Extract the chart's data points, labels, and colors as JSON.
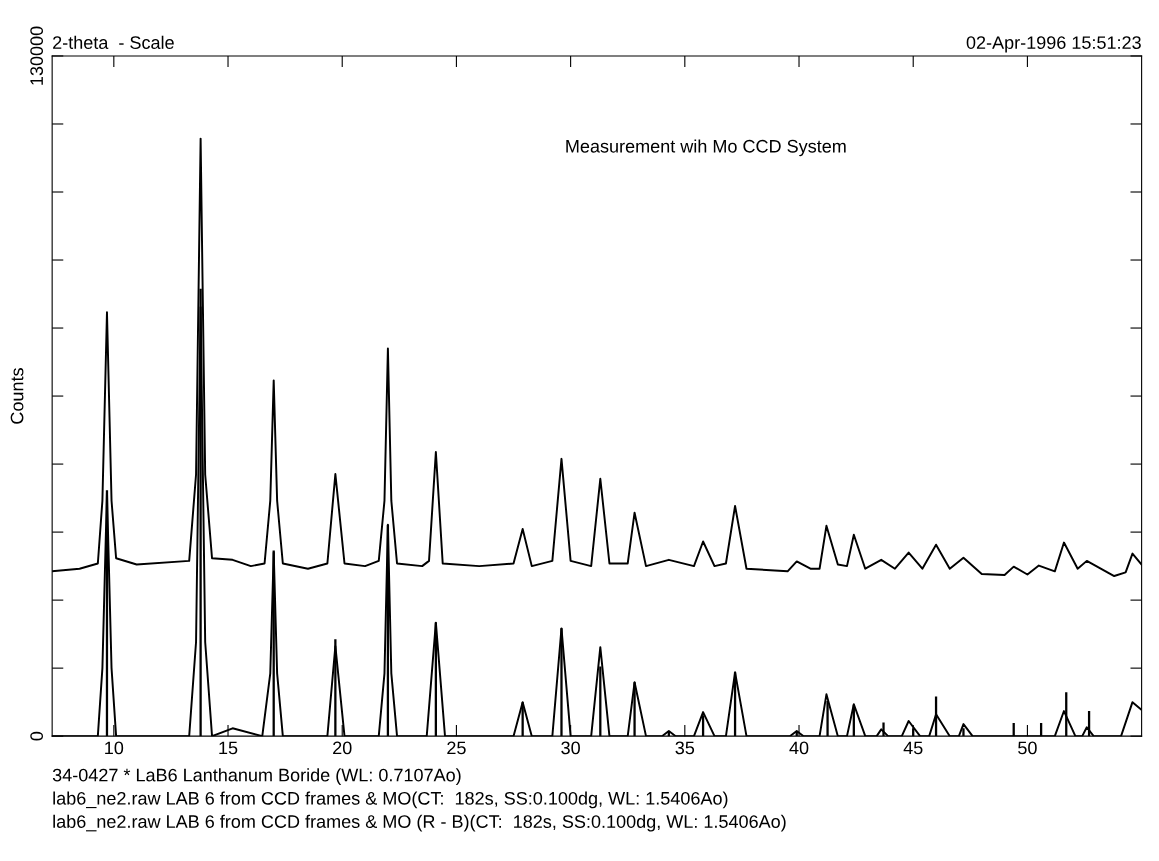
{
  "chart_data": {
    "type": "line",
    "xlabel": "2-theta  - Scale",
    "ylabel": "Counts",
    "subtitle": "02-Apr-1996 15:51:23",
    "annotations": [
      "Measurement wih Mo CCD System",
      "34-0427 * LaB6 Lanthanum Boride (WL: 0.7107Ao)",
      "lab6_ne2.raw LAB 6 from CCD frames & MO(CT:  182s, SS:0.100dg, WL: 1.5406Ao)",
      "lab6_ne2.raw LAB 6 from CCD frames & MO (R - B)(CT:  182s, SS:0.100dg, WL: 1.5406Ao)"
    ],
    "xlim": [
      7.3,
      55.0
    ],
    "xticks": [
      10,
      15,
      20,
      25,
      30,
      35,
      40,
      45,
      50
    ],
    "ylim": [
      0,
      130000
    ],
    "yticks": [
      0,
      {
        "value": 13000,
        "label": null
      },
      {
        "value": 26000,
        "label": null
      },
      {
        "value": 39000,
        "label": null
      },
      {
        "value": 52000,
        "label": null
      },
      {
        "value": 65000,
        "label": null
      },
      {
        "value": 78000,
        "label": null
      },
      {
        "value": 91000,
        "label": null
      },
      {
        "value": 104000,
        "label": null
      },
      {
        "value": 117000,
        "label": null
      },
      130000
    ],
    "tick_labels": "x,y",
    "grid": false,
    "legend": false,
    "series": [
      {
        "type": "bar",
        "color": "#000000",
        "x": [
          9.7,
          13.8,
          17.0,
          19.7,
          22.0,
          24.1,
          27.9,
          29.6,
          31.3,
          32.8,
          34.3,
          35.8,
          37.2,
          39.9,
          41.25,
          42.4,
          43.7,
          45.0,
          46.0,
          47.2,
          49.4,
          50.6,
          51.7,
          52.7
        ],
        "values": [
          47000,
          85500,
          35500,
          18500,
          40400,
          21700,
          6500,
          20600,
          13300,
          10300,
          900,
          4000,
          12200,
          700,
          6700,
          6000,
          2600,
          1500,
          7600,
          1500,
          2500,
          2500,
          8400,
          4800
        ]
      },
      {
        "color": "#000000",
        "x": [
          7.3,
          8.5,
          9.3,
          9.5,
          9.7,
          9.9,
          10.1,
          11,
          13.3,
          13.6,
          13.8,
          14.0,
          14.3,
          15.2,
          16.0,
          16.6,
          16.85,
          17.0,
          17.15,
          17.4,
          18.5,
          19.35,
          19.7,
          20.1,
          21,
          21.6,
          21.85,
          22.0,
          22.15,
          22.4,
          23.5,
          23.8,
          24.1,
          24.4,
          26,
          27.5,
          27.9,
          28.3,
          29.2,
          29.6,
          30.0,
          30.9,
          31.3,
          31.7,
          32.5,
          32.8,
          33.3,
          34.3,
          35.4,
          35.8,
          36.3,
          36.8,
          37.2,
          37.7,
          39.5,
          39.9,
          40.5,
          40.9,
          41.2,
          41.7,
          42.1,
          42.4,
          42.9,
          43.6,
          44.2,
          44.8,
          45.4,
          46.0,
          46.6,
          47.2,
          48.0,
          49.0,
          49.4,
          50.0,
          50.5,
          51.2,
          51.6,
          52.2,
          52.6,
          53.8,
          54.3,
          54.6,
          55.0
        ],
        "values": [
          31500,
          32000,
          33000,
          45000,
          81000,
          45000,
          34000,
          32800,
          33500,
          50000,
          114200,
          50000,
          34000,
          33700,
          32500,
          33000,
          45000,
          68000,
          45000,
          33000,
          32000,
          33000,
          50100,
          33000,
          32500,
          33500,
          45000,
          74100,
          45000,
          33000,
          32500,
          33500,
          54300,
          33000,
          32500,
          33000,
          39600,
          32500,
          33500,
          53000,
          33500,
          32500,
          49200,
          33000,
          33000,
          42700,
          32500,
          33700,
          32500,
          37200,
          32500,
          33000,
          44000,
          32000,
          31500,
          33400,
          32000,
          32000,
          40200,
          32800,
          32500,
          38500,
          32000,
          33700,
          32000,
          35100,
          32000,
          36600,
          32000,
          34100,
          31000,
          30800,
          32400,
          30900,
          32600,
          31500,
          37000,
          32000,
          33500,
          30600,
          31300,
          34900,
          32800
        ]
      },
      {
        "color": "#000000",
        "x": [
          7.3,
          9.3,
          9.5,
          9.7,
          9.9,
          10.1,
          13.3,
          13.6,
          13.8,
          14.0,
          14.3,
          15.2,
          16.5,
          16.85,
          17.0,
          17.15,
          17.4,
          19.35,
          19.7,
          20.1,
          21.6,
          21.85,
          22.0,
          22.15,
          22.4,
          23.7,
          24.1,
          24.5,
          27.5,
          27.9,
          28.3,
          29.2,
          29.6,
          30.0,
          30.9,
          31.3,
          31.7,
          32.5,
          32.8,
          33.3,
          34.0,
          34.3,
          34.6,
          35.4,
          35.8,
          36.3,
          36.8,
          37.2,
          37.7,
          39.6,
          39.9,
          40.2,
          40.9,
          41.2,
          41.7,
          42.1,
          42.4,
          42.9,
          43.4,
          43.6,
          43.9,
          44.5,
          44.8,
          45.3,
          45.7,
          46.0,
          46.6,
          47.0,
          47.2,
          47.6,
          51.2,
          51.6,
          52.1,
          52.4,
          52.6,
          52.9,
          54.1,
          54.6,
          55.0
        ],
        "values": [
          0,
          0,
          13000,
          46700,
          13000,
          0,
          0,
          18000,
          82000,
          18000,
          0,
          1500,
          0,
          12000,
          35100,
          12000,
          0,
          0,
          17200,
          0,
          0,
          12000,
          40400,
          12000,
          0,
          0,
          21700,
          0,
          0,
          6500,
          0,
          0,
          20600,
          0,
          0,
          17000,
          0,
          0,
          10300,
          0,
          0,
          1000,
          0,
          0,
          4600,
          0,
          0,
          12200,
          0,
          0,
          1000,
          0,
          0,
          8000,
          0,
          0,
          6100,
          0,
          0,
          1300,
          0,
          0,
          2900,
          0,
          0,
          4200,
          0,
          0,
          2300,
          0,
          0,
          4800,
          0,
          0,
          1700,
          0,
          0,
          6500,
          5000
        ]
      }
    ]
  }
}
